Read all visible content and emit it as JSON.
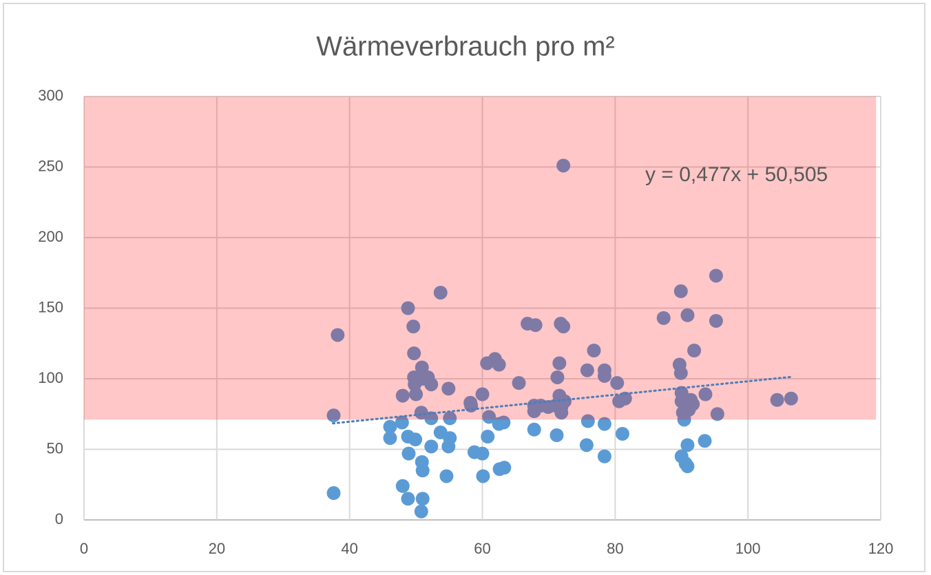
{
  "chart_data": {
    "type": "scatter",
    "title": "Wärmeverbrauch pro m²",
    "x": [
      37.6,
      38.2,
      37.6,
      46.1,
      46.1,
      47.9,
      48.0,
      48.0,
      48.8,
      48.8,
      48.9,
      48.8,
      49.6,
      49.7,
      49.9,
      49.7,
      49.8,
      50.0,
      50.8,
      50.9,
      51.0,
      50.9,
      51.0,
      51.0,
      50.8,
      51.8,
      52.3,
      52.3,
      52.3,
      53.7,
      53.7,
      54.6,
      54.9,
      55.1,
      55.1,
      54.9,
      58.2,
      58.3,
      58.8,
      60.0,
      60.0,
      60.1,
      60.7,
      61.0,
      60.8,
      61.9,
      62.5,
      62.5,
      62.6,
      63.3,
      63.2,
      65.5,
      66.8,
      68.0,
      67.8,
      67.8,
      67.8,
      68.8,
      69.9,
      71.0,
      71.3,
      71.6,
      71.2,
      71.6,
      71.9,
      71.9,
      71.8,
      72.2,
      72.2,
      72.4,
      75.8,
      75.9,
      75.7,
      76.8,
      78.4,
      78.4,
      78.4,
      78.4,
      80.3,
      80.6,
      81.5,
      81.1,
      87.3,
      89.9,
      89.7,
      89.9,
      90.0,
      90.0,
      90.2,
      90.4,
      90.0,
      90.6,
      90.9,
      90.9,
      90.9,
      91.4,
      91.7,
      91.1,
      91.9,
      93.6,
      93.5,
      95.2,
      95.2,
      95.4,
      104.4,
      106.5
    ],
    "values": [
      19,
      131,
      74,
      66,
      58,
      69,
      88,
      24,
      150,
      59,
      47,
      15,
      137,
      118,
      57,
      101,
      96,
      89,
      76,
      108,
      100,
      41,
      35,
      15,
      6,
      101,
      96,
      72,
      52,
      161,
      62,
      31,
      93,
      72,
      58,
      52,
      83,
      81,
      48,
      89,
      47,
      31,
      111,
      73,
      59,
      114,
      110,
      68,
      36,
      37,
      69,
      97,
      139,
      138,
      81,
      77,
      64,
      81,
      80,
      81,
      101,
      111,
      60,
      88,
      80,
      76,
      139,
      137,
      251,
      84,
      106,
      70,
      53,
      120,
      106,
      102,
      68,
      45,
      97,
      84,
      86,
      61,
      143,
      162,
      110,
      104,
      90,
      84,
      76,
      71,
      45,
      40,
      38,
      53,
      145,
      85,
      82,
      78,
      120,
      89,
      56,
      173,
      141,
      75,
      85,
      86
    ],
    "color": "#5b9bd5",
    "xlim": [
      0,
      120
    ],
    "xticks": [
      0,
      20,
      40,
      60,
      80,
      100,
      120
    ],
    "ylim": [
      0,
      300
    ],
    "yticks": [
      0,
      50,
      100,
      150,
      200,
      250,
      300
    ],
    "grid": true,
    "band": {
      "from": 71,
      "to": 300,
      "x_to": 119.3,
      "color": "#ff0000",
      "opacity": 0.22
    },
    "trendline": {
      "label": "y = 0,477x + 50,505",
      "slope": 0.477,
      "intercept": 50.505,
      "x_range": [
        37.5,
        106.5
      ],
      "color": "#4a7ebb"
    }
  }
}
